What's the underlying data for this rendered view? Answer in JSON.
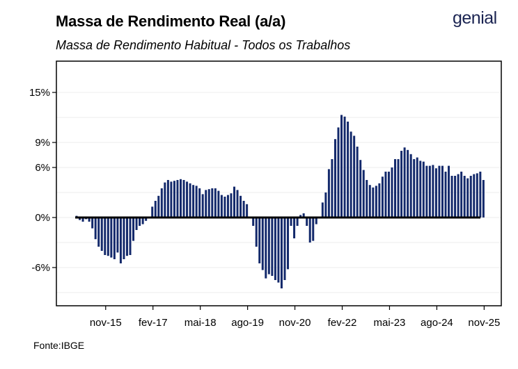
{
  "header": {
    "title": "Massa de Rendimento Real (a/a)",
    "subtitle": "Massa de Rendimento Habitual - Todos os Trabalhos",
    "logo": "genial",
    "source": "Fonte:IBGE"
  },
  "colors": {
    "bar": "#13296b",
    "zero_line": "#000000",
    "grid": "#ececec",
    "logo": "#1b2452"
  },
  "chart_data": {
    "type": "bar",
    "title": "Massa de Rendimento Real (a/a)",
    "subtitle": "Massa de Rendimento Habitual - Todos os Trabalhos",
    "xlabel": "",
    "ylabel": "",
    "ylim": [
      -10.5,
      18.5
    ],
    "y_ticks": [
      -6,
      0,
      6,
      9,
      15
    ],
    "y_tick_labels": [
      "-6%",
      "0%",
      "6%",
      "9%",
      "15%"
    ],
    "x_tick_labels": [
      "nov-15",
      "fev-17",
      "mai-18",
      "ago-19",
      "nov-20",
      "fev-22",
      "mai-23",
      "ago-24",
      "nov-25"
    ],
    "x_tick_index": [
      9,
      24,
      39,
      54,
      69,
      84,
      99,
      114,
      129
    ],
    "grid": true,
    "categories_note": "monthly, mar-15 to set-25",
    "series": [
      {
        "values": [
          0.2,
          -0.3,
          -0.5,
          -0.2,
          -0.5,
          -1.3,
          -2.6,
          -3.5,
          -4.0,
          -4.5,
          -4.6,
          -4.8,
          -5.0,
          -4.2,
          -5.5,
          -5.0,
          -4.6,
          -4.5,
          -2.8,
          -1.5,
          -1.0,
          -0.8,
          -0.4,
          0.0,
          1.3,
          2.0,
          2.6,
          3.5,
          4.2,
          4.5,
          4.3,
          4.4,
          4.5,
          4.6,
          4.5,
          4.3,
          4.1,
          3.9,
          3.8,
          3.5,
          2.8,
          3.3,
          3.4,
          3.5,
          3.5,
          3.2,
          2.7,
          2.5,
          2.7,
          2.9,
          3.7,
          3.3,
          2.6,
          2.0,
          1.6,
          0.0,
          -1.0,
          -3.5,
          -5.5,
          -6.3,
          -7.3,
          -6.8,
          -7.0,
          -7.5,
          -7.8,
          -8.5,
          -7.5,
          -6.2,
          -1.0,
          -2.5,
          -1.0,
          0.3,
          0.5,
          -1.0,
          -3.0,
          -2.8,
          -0.8,
          0.0,
          1.8,
          3.0,
          5.8,
          7.0,
          9.4,
          10.8,
          12.3,
          12.1,
          11.5,
          10.3,
          9.8,
          8.5,
          6.9,
          5.7,
          4.5,
          3.9,
          3.6,
          3.8,
          4.1,
          4.9,
          5.5,
          5.5,
          6.0,
          7.0,
          7.0,
          8.0,
          8.4,
          8.1,
          7.6,
          7.0,
          7.2,
          6.8,
          6.7,
          6.2,
          6.2,
          6.3,
          5.9,
          6.2,
          6.2,
          5.5,
          6.2,
          5.0,
          5.0,
          5.2,
          5.5,
          5.0,
          4.7,
          5.0,
          5.2,
          5.3,
          5.5,
          4.5
        ]
      }
    ]
  }
}
